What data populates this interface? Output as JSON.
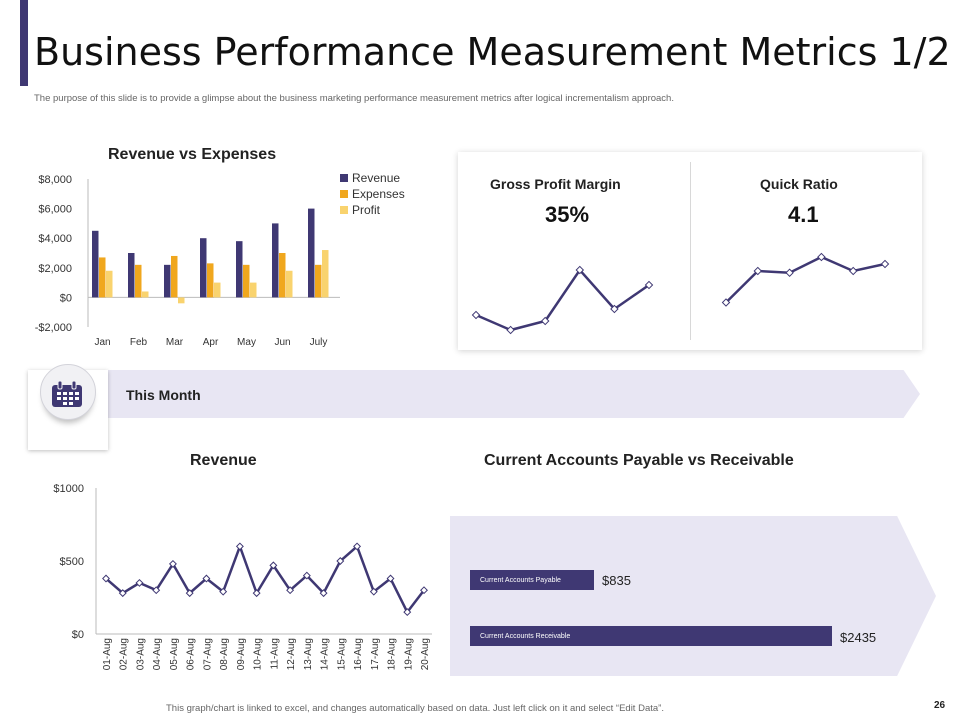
{
  "header": {
    "title": "Business Performance Measurement Metrics 1/2",
    "subtitle": "The purpose of this slide is to provide a glimpse about the business marketing performance measurement metrics after logical incrementalism approach."
  },
  "colors": {
    "revenue": "#3f3873",
    "expenses": "#f0a71e",
    "profit": "#f9d36e",
    "accent": "#3f3873",
    "panel": "#e8e6f3"
  },
  "banner": {
    "label": "This Month",
    "icon": "calendar-icon"
  },
  "kpis": {
    "gross_profit_margin": {
      "label": "Gross Profit Margin",
      "value": "35%"
    },
    "quick_ratio": {
      "label": "Quick Ratio",
      "value": "4.1"
    }
  },
  "payables": {
    "title": "Current Accounts Payable vs Receivable",
    "items": [
      {
        "label": "Current Accounts Payable",
        "value_text": "$835",
        "value": 835
      },
      {
        "label": "Current Accounts Receivable",
        "value_text": "$2435",
        "value": 2435
      }
    ]
  },
  "footer": {
    "note": "This graph/chart is linked to excel, and changes automatically based on data. Just left click on it and select “Edit Data”.",
    "page_number": "26"
  },
  "chart_data": [
    {
      "id": "revenue_vs_expenses",
      "type": "bar",
      "title": "Revenue vs Expenses",
      "categories": [
        "Jan",
        "Feb",
        "Mar",
        "Apr",
        "May",
        "Jun",
        "July"
      ],
      "series": [
        {
          "name": "Revenue",
          "values": [
            4500,
            3000,
            2200,
            4000,
            3800,
            5000,
            6000
          ]
        },
        {
          "name": "Expenses",
          "values": [
            2700,
            2200,
            2800,
            2300,
            2200,
            3000,
            2200
          ]
        },
        {
          "name": "Profit",
          "values": [
            1800,
            400,
            -400,
            1000,
            1000,
            1800,
            3200
          ]
        }
      ],
      "ylim": [
        -2000,
        8000
      ],
      "yticks": [
        -2000,
        0,
        2000,
        4000,
        6000,
        8000
      ],
      "ytick_labels": [
        "-$2,000",
        "$0",
        "$2,000",
        "$4,000",
        "$6,000",
        "$8,000"
      ],
      "legend": "top-right"
    },
    {
      "id": "gross_profit_margin_trend",
      "type": "line",
      "values": [
        30,
        25,
        28,
        45,
        32,
        40
      ],
      "ylim": [
        20,
        50
      ]
    },
    {
      "id": "quick_ratio_trend",
      "type": "line",
      "values": [
        3.0,
        3.9,
        3.85,
        4.3,
        3.9,
        4.1
      ],
      "ylim": [
        2.5,
        4.5
      ]
    },
    {
      "id": "daily_revenue",
      "type": "line",
      "title": "Revenue",
      "categories": [
        "01-Aug",
        "02-Aug",
        "03-Aug",
        "04-Aug",
        "05-Aug",
        "06-Aug",
        "07-Aug",
        "08-Aug",
        "09-Aug",
        "10-Aug",
        "11-Aug",
        "12-Aug",
        "13-Aug",
        "14-Aug",
        "15-Aug",
        "16-Aug",
        "17-Aug",
        "18-Aug",
        "19-Aug",
        "20-Aug"
      ],
      "values": [
        380,
        280,
        350,
        300,
        480,
        280,
        380,
        290,
        600,
        280,
        470,
        300,
        400,
        280,
        500,
        600,
        290,
        380,
        150,
        300
      ],
      "ylim": [
        0,
        1000
      ],
      "yticks": [
        0,
        500,
        1000
      ],
      "ytick_labels": [
        "$0",
        "$500",
        "$1000"
      ]
    }
  ]
}
